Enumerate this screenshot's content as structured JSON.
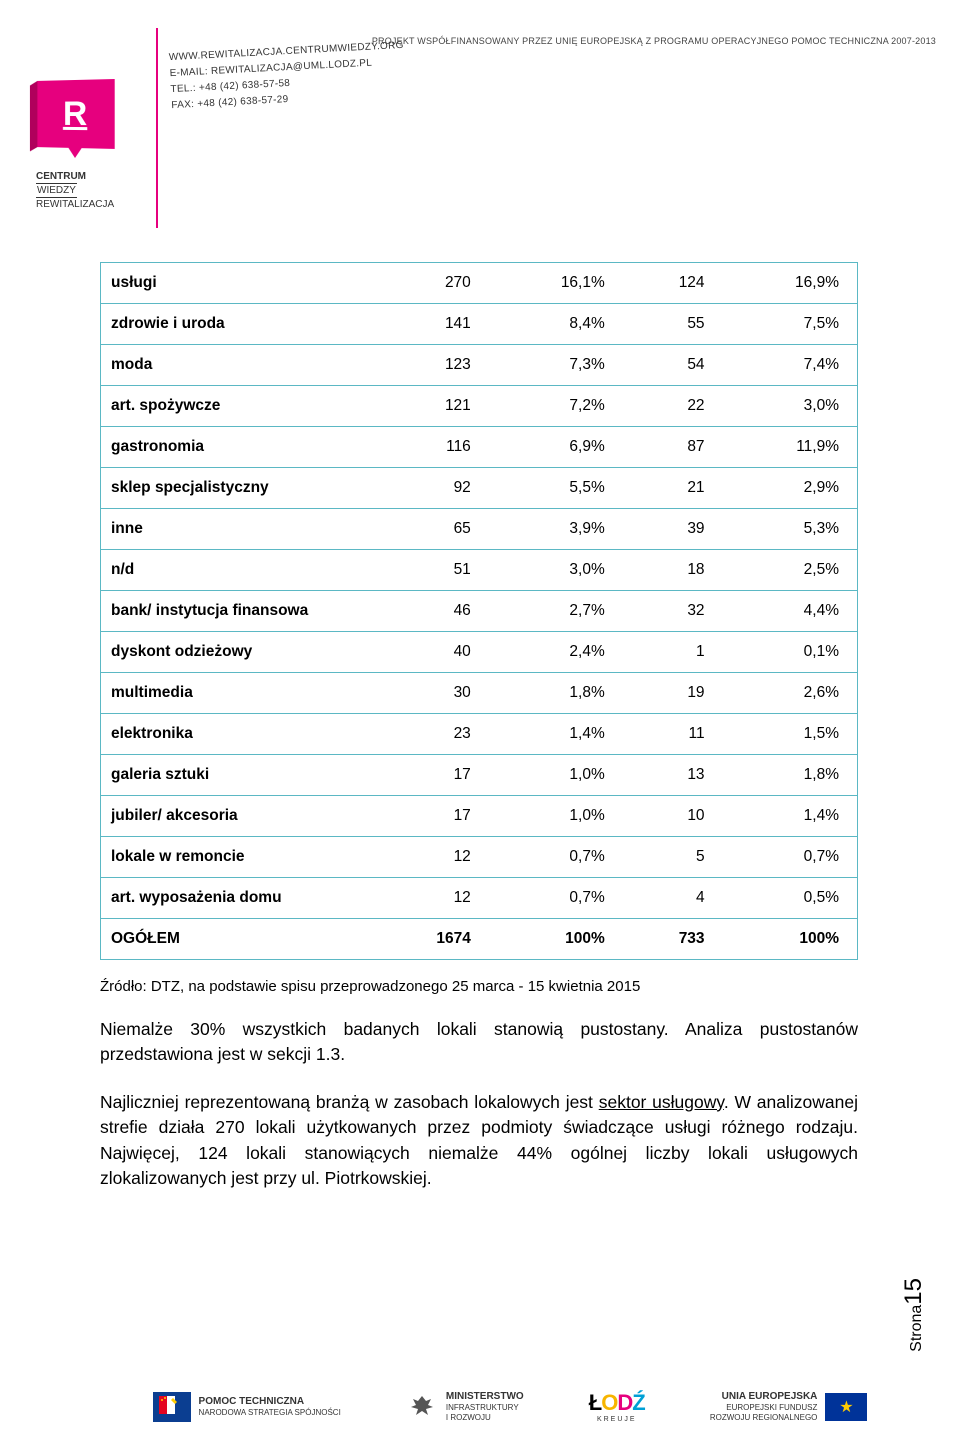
{
  "header": {
    "contact_lines": [
      "WWW.REWITALIZACJA.CENTRUMWIEDZY.ORG",
      "E-MAIL: REWITALIZACJA@UML.LODZ.PL",
      "TEL.: +48 (42) 638-57-58",
      "FAX: +48 (42) 638-57-29"
    ],
    "funding": "PROJEKT WSPÓŁFINANSOWANY PRZEZ UNIĘ EUROPEJSKĄ Z PROGRAMU OPERACYJNEGO POMOC TECHNICZNA 2007-2013",
    "logo_text_1": "CENTRUM",
    "logo_text_2": "WIEDZY",
    "logo_text_3": "REWITALIZACJA"
  },
  "table": {
    "row_border_color": "#5bb8c4",
    "rows": [
      {
        "label": "usługi",
        "v1": "270",
        "p1": "16,1%",
        "v2": "124",
        "p2": "16,9%"
      },
      {
        "label": "zdrowie i uroda",
        "v1": "141",
        "p1": "8,4%",
        "v2": "55",
        "p2": "7,5%"
      },
      {
        "label": "moda",
        "v1": "123",
        "p1": "7,3%",
        "v2": "54",
        "p2": "7,4%"
      },
      {
        "label": "art. spożywcze",
        "v1": "121",
        "p1": "7,2%",
        "v2": "22",
        "p2": "3,0%"
      },
      {
        "label": "gastronomia",
        "v1": "116",
        "p1": "6,9%",
        "v2": "87",
        "p2": "11,9%"
      },
      {
        "label": "sklep specjalistyczny",
        "v1": "92",
        "p1": "5,5%",
        "v2": "21",
        "p2": "2,9%"
      },
      {
        "label": "inne",
        "v1": "65",
        "p1": "3,9%",
        "v2": "39",
        "p2": "5,3%"
      },
      {
        "label": "n/d",
        "v1": "51",
        "p1": "3,0%",
        "v2": "18",
        "p2": "2,5%"
      },
      {
        "label": "bank/ instytucja finansowa",
        "v1": "46",
        "p1": "2,7%",
        "v2": "32",
        "p2": "4,4%"
      },
      {
        "label": "dyskont odzieżowy",
        "v1": "40",
        "p1": "2,4%",
        "v2": "1",
        "p2": "0,1%"
      },
      {
        "label": "multimedia",
        "v1": "30",
        "p1": "1,8%",
        "v2": "19",
        "p2": "2,6%"
      },
      {
        "label": "elektronika",
        "v1": "23",
        "p1": "1,4%",
        "v2": "11",
        "p2": "1,5%"
      },
      {
        "label": "galeria sztuki",
        "v1": "17",
        "p1": "1,0%",
        "v2": "13",
        "p2": "1,8%"
      },
      {
        "label": "jubiler/ akcesoria",
        "v1": "17",
        "p1": "1,0%",
        "v2": "10",
        "p2": "1,4%"
      },
      {
        "label": "lokale w remoncie",
        "v1": "12",
        "p1": "0,7%",
        "v2": "5",
        "p2": "0,7%"
      },
      {
        "label": "art. wyposażenia domu",
        "v1": "12",
        "p1": "0,7%",
        "v2": "4",
        "p2": "0,5%"
      },
      {
        "label": "OGÓŁEM",
        "v1": "1674",
        "p1": "100%",
        "v2": "733",
        "p2": "100%",
        "total": true
      }
    ]
  },
  "source": "Źródło: DTZ, na podstawie spisu przeprowadzonego 25 marca - 15 kwietnia 2015",
  "paragraphs": {
    "p1": "Niemalże 30% wszystkich badanych lokali stanowią pustostany. Analiza pustostanów przedstawiona jest w sekcji 1.3.",
    "p2_a": "Najliczniej reprezentowaną branżą w zasobach lokalowych jest ",
    "p2_u": "sektor usługowy",
    "p2_b": ". W analizowanej strefie działa 270 lokali użytkowanych przez podmioty świadczące usługi różnego rodzaju. Najwięcej, 124 lokali stanowiących niemalże 44% ogólnej liczby lokali usługowych zlokalizowanych jest przy ul. Piotrkowskiej."
  },
  "page": {
    "label": "Strona",
    "num": "15"
  },
  "footer": {
    "f1_b": "POMOC TECHNICZNA",
    "f1_s": "NARODOWA STRATEGIA SPÓJNOŚCI",
    "f2_b": "MINISTERSTWO",
    "f2_s1": "INFRASTRUKTURY",
    "f2_s2": "I ROZWOJU",
    "f3": "ŁÓDŹ",
    "f3_s": "KREUJE",
    "f4_b": "UNIA EUROPEJSKA",
    "f4_s1": "EUROPEJSKI FUNDUSZ",
    "f4_s2": "ROZWOJU REGIONALNEGO"
  }
}
